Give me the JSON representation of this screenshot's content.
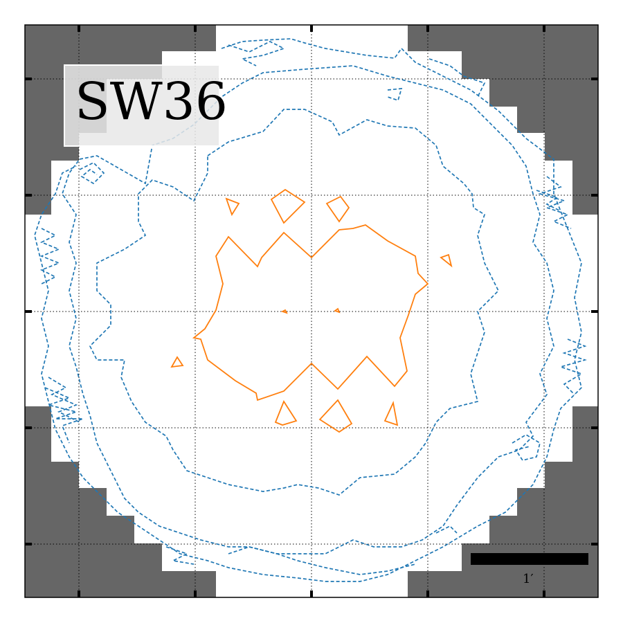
{
  "panel": {
    "label": "SW36",
    "scale_bar_label": "1′"
  },
  "colors": {
    "mask": "#666666",
    "inner_contour": "#ff7f0e",
    "outer_contours": "#1f77b4",
    "label_box": "#d9d9d9",
    "grid": "#000000",
    "scale_bar": "#000000"
  },
  "grid": {
    "on": true,
    "style": "dotted"
  },
  "contours": {
    "solid_count": 1,
    "dashed_count": 3
  }
}
